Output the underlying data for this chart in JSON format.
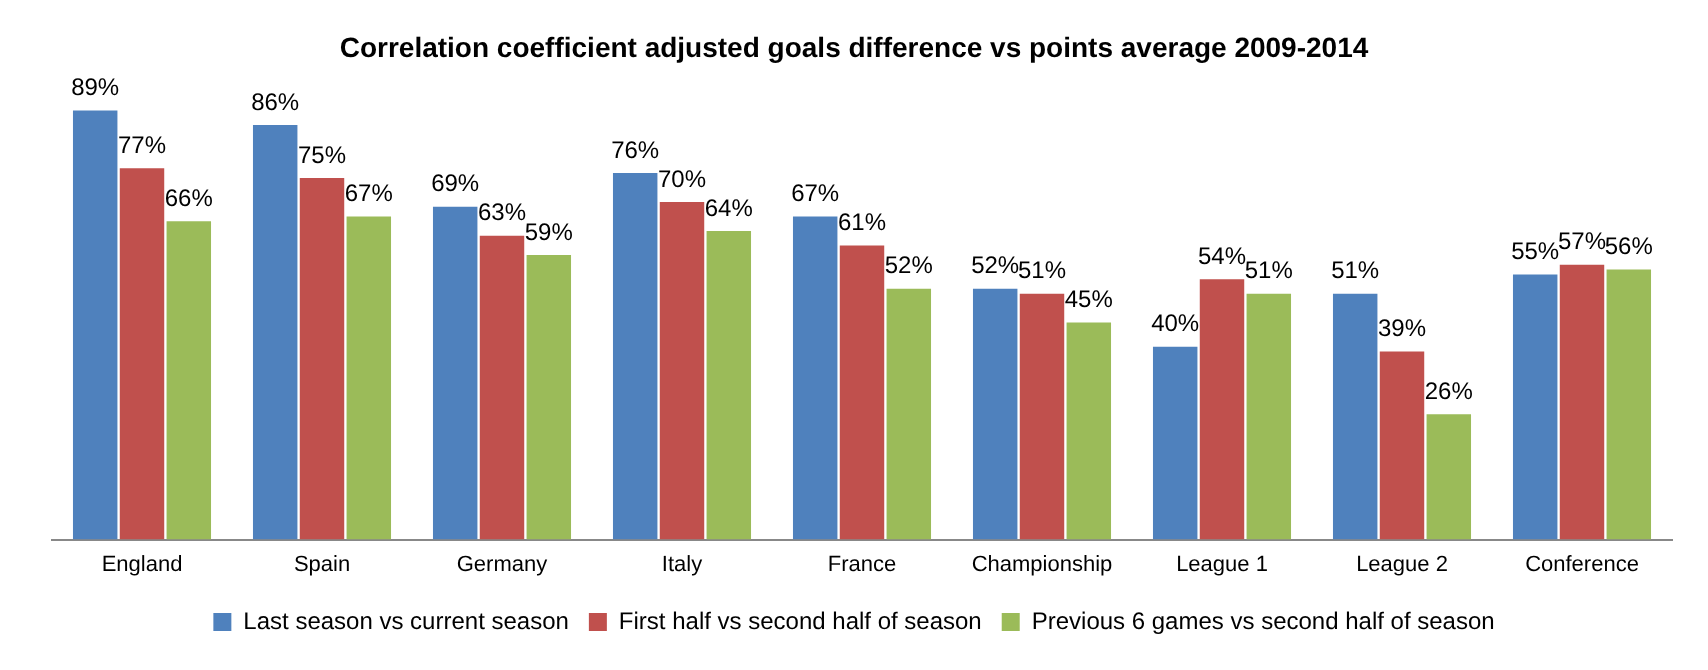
{
  "chart_data": {
    "type": "bar",
    "title": "Correlation coefficient adjusted goals difference vs points average 2009-2014",
    "categories": [
      "England",
      "Spain",
      "Germany",
      "Italy",
      "France",
      "Championship",
      "League 1",
      "League 2",
      "Conference"
    ],
    "series": [
      {
        "name": "Last season vs current season",
        "color": "#4f81bd",
        "values": [
          89,
          86,
          69,
          76,
          67,
          52,
          40,
          51,
          55
        ],
        "value_labels": [
          "89%",
          "86%",
          "69%",
          "76%",
          "67%",
          "52%",
          "40%",
          "51%",
          "55%"
        ]
      },
      {
        "name": "First half vs second half of season",
        "color": "#c0504d",
        "values": [
          77,
          75,
          63,
          70,
          61,
          51,
          54,
          39,
          57
        ],
        "value_labels": [
          "77%",
          "75%",
          "63%",
          "70%",
          "61%",
          "51%",
          "54%",
          "39%",
          "57%"
        ]
      },
      {
        "name": "Previous 6 games vs second half of season",
        "color": "#9bbb59",
        "values": [
          66,
          67,
          59,
          64,
          52,
          45,
          51,
          26,
          56
        ],
        "value_labels": [
          "66%",
          "67%",
          "59%",
          "64%",
          "52%",
          "45%",
          "51%",
          "26%",
          "56%"
        ]
      }
    ],
    "legend": "bottom",
    "grid": false
  }
}
